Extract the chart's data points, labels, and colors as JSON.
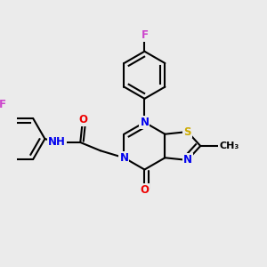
{
  "bg_color": "#ebebeb",
  "bond_color": "#000000",
  "bond_width": 1.5,
  "atom_colors": {
    "N": "#0000ee",
    "O": "#ee0000",
    "S": "#ccaa00",
    "F": "#cc44cc",
    "H": "#44aaaa",
    "C": "#000000"
  },
  "font_size": 8.5,
  "fig_size": [
    3.0,
    3.0
  ],
  "dpi": 100,
  "xlim": [
    0.0,
    1.0
  ],
  "ylim": [
    0.05,
    0.98
  ]
}
